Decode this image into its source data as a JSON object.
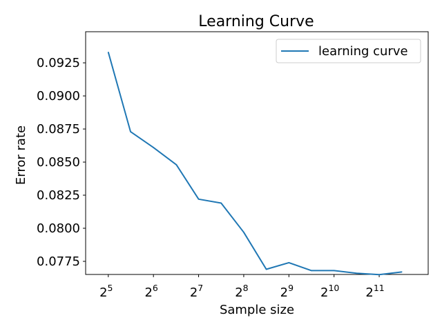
{
  "chart_data": {
    "type": "line",
    "title": "Learning Curve",
    "xlabel": "Sample size",
    "ylabel": "Error rate",
    "x_scale": "log2",
    "xlim": [
      22.6,
      4344.5
    ],
    "ylim": [
      0.07651,
      0.09485
    ],
    "xticks": [
      {
        "value": 32,
        "base": "2",
        "exp": "5"
      },
      {
        "value": 64,
        "base": "2",
        "exp": "6"
      },
      {
        "value": 128,
        "base": "2",
        "exp": "7"
      },
      {
        "value": 256,
        "base": "2",
        "exp": "8"
      },
      {
        "value": 512,
        "base": "2",
        "exp": "9"
      },
      {
        "value": 1024,
        "base": "2",
        "exp": "10"
      },
      {
        "value": 2048,
        "base": "2",
        "exp": "11"
      }
    ],
    "yticks": [
      {
        "value": 0.0775,
        "label": "0.0775"
      },
      {
        "value": 0.08,
        "label": "0.0800"
      },
      {
        "value": 0.0825,
        "label": "0.0825"
      },
      {
        "value": 0.085,
        "label": "0.0850"
      },
      {
        "value": 0.0875,
        "label": "0.0875"
      },
      {
        "value": 0.09,
        "label": "0.0900"
      },
      {
        "value": 0.0925,
        "label": "0.0925"
      }
    ],
    "series": [
      {
        "name": "learning curve",
        "color": "#1f77b4",
        "x": [
          32,
          45,
          64,
          91,
          128,
          181,
          256,
          362,
          512,
          724,
          1024,
          1448,
          2048,
          2896
        ],
        "y": [
          0.0933,
          0.0873,
          0.0861,
          0.0848,
          0.0822,
          0.0819,
          0.0797,
          0.0769,
          0.0774,
          0.0768,
          0.0768,
          0.0766,
          0.0765,
          0.0767
        ]
      }
    ],
    "legend_position": "top-right",
    "grid": false
  }
}
